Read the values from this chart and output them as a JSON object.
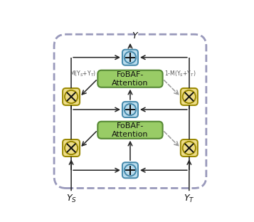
{
  "bg_color": "#ffffff",
  "outer_box_color": "#9999bb",
  "fobar_color": "#99cc66",
  "fobar_edge_color": "#558833",
  "sum_color": "#bbddee",
  "sum_edge_color": "#4488aa",
  "cross_color": "#eedd88",
  "cross_edge_color": "#998800",
  "arrow_color": "#222222",
  "dashed_color": "#999999",
  "text_color": "#333333",
  "label_color": "#555555",
  "figsize": [
    3.57,
    3.12
  ],
  "dpi": 100,
  "fobaf_text": "FoBAF-\nAttention",
  "ys_label": "Y$_S$",
  "yt_label": "Y$_T$",
  "y_label": "Y",
  "m_label": "M(Y$_S$+Y$_T$)",
  "one_m_label": "1-M(Y$_S$+Y$_T$)"
}
